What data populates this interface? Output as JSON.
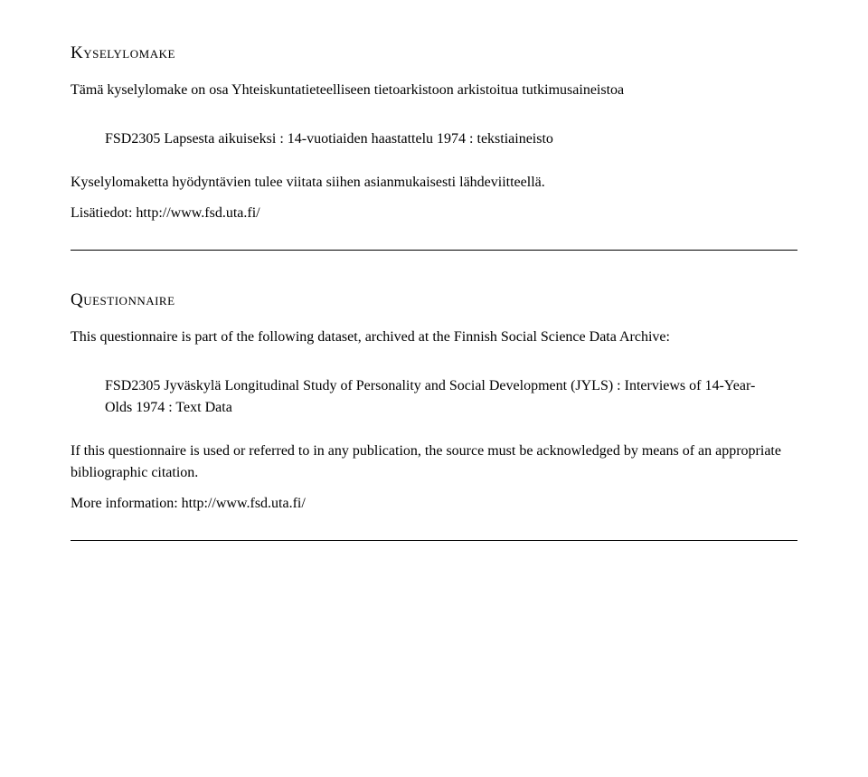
{
  "section1": {
    "heading": "Kyselylomake",
    "intro": "Tämä kyselylomake on osa Yhteiskuntatieteelliseen tietoarkistoon arkistoitua tutkimusaineistoa",
    "dataset": "FSD2305 Lapsesta aikuiseksi : 14-vuotiaiden haastattelu 1974 : tekstiaineisto",
    "citation": "Kyselylomaketta hyödyntävien tulee viitata siihen asianmukaisesti lähdeviitteellä.",
    "more": "Lisätiedot: http://www.fsd.uta.fi/"
  },
  "section2": {
    "heading": "Questionnaire",
    "intro": "This questionnaire is part of the following dataset, archived at the Finnish Social Science Data Archive:",
    "dataset": "FSD2305 Jyväskylä Longitudinal Study of Personality and Social Development (JYLS) : Interviews of 14-Year-Olds 1974 : Text Data",
    "citation": "If this questionnaire is used or referred to in any publication, the source must be acknowledged by means of an appropriate bibliographic citation.",
    "more": "More information: http://www.fsd.uta.fi/"
  }
}
